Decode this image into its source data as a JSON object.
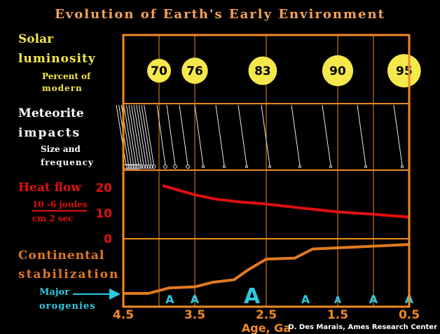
{
  "title": "Evolution of Earth's Early Environment",
  "panels": {
    "solar": {
      "label1": "Solar",
      "label2": "luminosity",
      "sub1": "Percent of",
      "sub2": "modern",
      "values": [
        {
          "age": 4.0,
          "pct": "70"
        },
        {
          "age": 3.5,
          "pct": "76"
        },
        {
          "age": 2.55,
          "pct": "83"
        },
        {
          "age": 1.5,
          "pct": "90"
        },
        {
          "age": 0.57,
          "pct": "95"
        }
      ]
    },
    "impacts": {
      "label1": "Meteorite",
      "label2": "impacts",
      "sub1": "Size and",
      "sub2": "frequency"
    },
    "heat": {
      "label1": "Heat flow",
      "unit_num": "10 -6 joules",
      "unit_den": "cm 2 sec",
      "ticks": [
        "20",
        "10",
        "0"
      ],
      "curve": [
        {
          "age": 3.95,
          "value": 20.8
        },
        {
          "age": 3.7,
          "value": 18.8
        },
        {
          "age": 3.5,
          "value": 17.2
        },
        {
          "age": 3.2,
          "value": 15.5
        },
        {
          "age": 2.9,
          "value": 14.5
        },
        {
          "age": 2.5,
          "value": 13.6
        },
        {
          "age": 2.0,
          "value": 12.0
        },
        {
          "age": 1.5,
          "value": 10.5
        },
        {
          "age": 1.0,
          "value": 9.6
        },
        {
          "age": 0.5,
          "value": 8.5
        }
      ]
    },
    "continental": {
      "label1": "Continental",
      "label2": "stabilization",
      "orogeny_label1": "Major",
      "orogeny_label2": "orogenies",
      "curve": [
        {
          "age": 4.5,
          "value": 0.0
        },
        {
          "age": 4.15,
          "value": 0.0
        },
        {
          "age": 3.85,
          "value": 0.11
        },
        {
          "age": 3.5,
          "value": 0.13
        },
        {
          "age": 3.25,
          "value": 0.22
        },
        {
          "age": 2.95,
          "value": 0.27
        },
        {
          "age": 2.75,
          "value": 0.47
        },
        {
          "age": 2.5,
          "value": 0.68
        },
        {
          "age": 2.1,
          "value": 0.7
        },
        {
          "age": 1.85,
          "value": 0.88
        },
        {
          "age": 0.5,
          "value": 0.97
        }
      ],
      "orogenies": [
        {
          "age": 3.85,
          "label": "A",
          "size": "small"
        },
        {
          "age": 3.5,
          "label": "A",
          "size": "small"
        },
        {
          "age": 2.7,
          "label": "A",
          "size": "large"
        },
        {
          "age": 1.95,
          "label": "A",
          "size": "small"
        },
        {
          "age": 1.5,
          "label": "A",
          "size": "tiny"
        },
        {
          "age": 1.0,
          "label": "A",
          "size": "small"
        },
        {
          "age": 0.5,
          "label": "A",
          "size": "small"
        }
      ]
    }
  },
  "x_axis": {
    "label": "Age, Ga",
    "ticks": [
      "4.5",
      "3.5",
      "2.5",
      "1.5",
      "0.5"
    ]
  },
  "credit": "D. Des Marais, Ames Research Center",
  "colors": {
    "frame": "#f08a24",
    "solar": "#f5e84a",
    "heat": "#e01010",
    "continental": "#e07a20",
    "orogeny": "#30c8e0"
  }
}
